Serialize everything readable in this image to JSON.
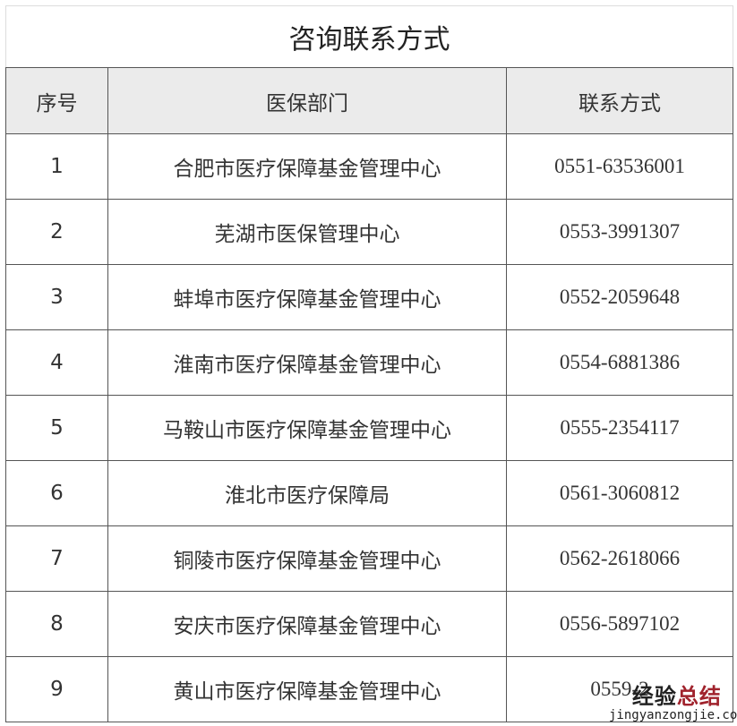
{
  "title": "咨询联系方式",
  "headers": [
    "序号",
    "医保部门",
    "联系方式"
  ],
  "rows": [
    {
      "no": "1",
      "dept": "合肥市医疗保障基金管理中心",
      "phone": "0551-63536001"
    },
    {
      "no": "2",
      "dept": "芜湖市医保管理中心",
      "phone": "0553-3991307"
    },
    {
      "no": "3",
      "dept": "蚌埠市医疗保障基金管理中心",
      "phone": "0552-2059648"
    },
    {
      "no": "4",
      "dept": "淮南市医疗保障基金管理中心",
      "phone": "0554-6881386"
    },
    {
      "no": "5",
      "dept": "马鞍山市医疗保障基金管理中心",
      "phone": "0555-2354117"
    },
    {
      "no": "6",
      "dept": "淮北市医疗保障局",
      "phone": "0561-3060812"
    },
    {
      "no": "7",
      "dept": "铜陵市医疗保障基金管理中心",
      "phone": "0562-2618066"
    },
    {
      "no": "8",
      "dept": "安庆市医疗保障基金管理中心",
      "phone": "0556-5897102"
    },
    {
      "no": "9",
      "dept": "黄山市医疗保障基金管理中心",
      "phone": "0559-2"
    }
  ],
  "watermark": {
    "part1": "经验",
    "part2": "总结",
    "url": "jingyanzongjie.com"
  }
}
